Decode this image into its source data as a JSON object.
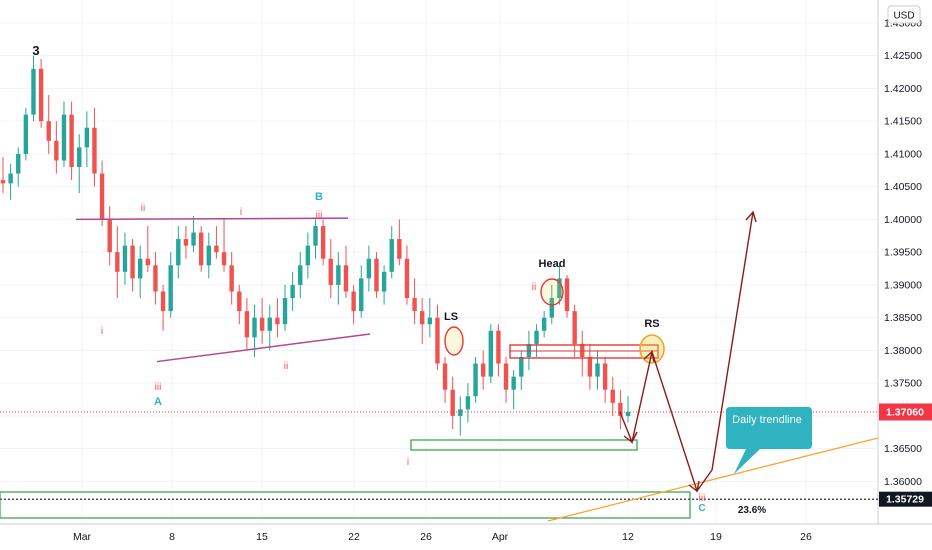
{
  "chart_data": {
    "type": "candlestick",
    "currency": "USD",
    "ylim": [
      1.3535,
      1.4335
    ],
    "y_ticks": [
      1.36,
      1.365,
      1.37,
      1.375,
      1.38,
      1.385,
      1.39,
      1.395,
      1.4,
      1.405,
      1.41,
      1.415,
      1.42,
      1.425,
      1.43
    ],
    "y_tick_labels": [
      "1.36000",
      "1.36500",
      "1.37000",
      "1.37500",
      "1.38000",
      "1.38500",
      "1.39000",
      "1.39500",
      "1.40000",
      "1.40500",
      "1.41000",
      "1.41500",
      "1.42000",
      "1.42500",
      "1.43000"
    ],
    "x_tick_labels": [
      "Mar",
      "8",
      "15",
      "22",
      "26",
      "Apr",
      "12",
      "19",
      "26"
    ],
    "current_price": {
      "value": 1.3706,
      "label": "1.37060",
      "color": "#f23645"
    },
    "level_price": {
      "value": 1.35729,
      "label": "1.35729",
      "color": "#131722"
    },
    "colors": {
      "up": "#26a69a",
      "down": "#ef5350",
      "trendline": "#f7a535",
      "pattern": "#b5478b",
      "box_green": "#2ea043",
      "box_red": "#e53935",
      "arrow": "#8b1a1a",
      "circle": "#f2a12e",
      "callout": "#2fb3c0"
    },
    "candles": [
      [
        1.406,
        1.4095,
        1.404,
        1.4055
      ],
      [
        1.4055,
        1.4085,
        1.403,
        1.407
      ],
      [
        1.407,
        1.411,
        1.405,
        1.41
      ],
      [
        1.41,
        1.417,
        1.409,
        1.416
      ],
      [
        1.416,
        1.425,
        1.415,
        1.423
      ],
      [
        1.423,
        1.4245,
        1.414,
        1.415
      ],
      [
        1.415,
        1.419,
        1.41,
        1.412
      ],
      [
        1.412,
        1.415,
        1.407,
        1.409
      ],
      [
        1.409,
        1.418,
        1.408,
        1.416
      ],
      [
        1.416,
        1.418,
        1.406,
        1.408
      ],
      [
        1.408,
        1.413,
        1.404,
        1.411
      ],
      [
        1.411,
        1.4165,
        1.408,
        1.414
      ],
      [
        1.414,
        1.417,
        1.405,
        1.407
      ],
      [
        1.407,
        1.409,
        1.399,
        1.4
      ],
      [
        1.4,
        1.402,
        1.393,
        1.395
      ],
      [
        1.395,
        1.399,
        1.388,
        1.392
      ],
      [
        1.392,
        1.398,
        1.39,
        1.396
      ],
      [
        1.396,
        1.397,
        1.389,
        1.391
      ],
      [
        1.391,
        1.396,
        1.388,
        1.394
      ],
      [
        1.394,
        1.399,
        1.392,
        1.393
      ],
      [
        1.393,
        1.395,
        1.387,
        1.389
      ],
      [
        1.389,
        1.39,
        1.383,
        1.386
      ],
      [
        1.386,
        1.395,
        1.385,
        1.393
      ],
      [
        1.393,
        1.399,
        1.391,
        1.397
      ],
      [
        1.397,
        1.399,
        1.394,
        1.396
      ],
      [
        1.396,
        1.4005,
        1.395,
        1.398
      ],
      [
        1.398,
        1.399,
        1.392,
        1.393
      ],
      [
        1.393,
        1.398,
        1.391,
        1.396
      ],
      [
        1.396,
        1.399,
        1.394,
        1.395
      ],
      [
        1.395,
        1.4,
        1.392,
        1.393
      ],
      [
        1.393,
        1.395,
        1.387,
        1.389
      ],
      [
        1.389,
        1.39,
        1.384,
        1.386
      ],
      [
        1.386,
        1.388,
        1.38,
        1.382
      ],
      [
        1.382,
        1.387,
        1.379,
        1.385
      ],
      [
        1.385,
        1.388,
        1.381,
        1.383
      ],
      [
        1.383,
        1.387,
        1.38,
        1.385
      ],
      [
        1.385,
        1.388,
        1.382,
        1.384
      ],
      [
        1.384,
        1.39,
        1.383,
        1.388
      ],
      [
        1.388,
        1.392,
        1.386,
        1.39
      ],
      [
        1.39,
        1.395,
        1.388,
        1.393
      ],
      [
        1.393,
        1.398,
        1.391,
        1.396
      ],
      [
        1.396,
        1.4,
        1.394,
        1.399
      ],
      [
        1.399,
        1.4,
        1.393,
        1.394
      ],
      [
        1.394,
        1.397,
        1.388,
        1.39
      ],
      [
        1.39,
        1.395,
        1.387,
        1.393
      ],
      [
        1.393,
        1.396,
        1.388,
        1.389
      ],
      [
        1.389,
        1.39,
        1.384,
        1.386
      ],
      [
        1.386,
        1.393,
        1.385,
        1.391
      ],
      [
        1.391,
        1.396,
        1.389,
        1.394
      ],
      [
        1.394,
        1.395,
        1.388,
        1.389
      ],
      [
        1.389,
        1.393,
        1.387,
        1.392
      ],
      [
        1.392,
        1.399,
        1.391,
        1.397
      ],
      [
        1.397,
        1.4,
        1.393,
        1.394
      ],
      [
        1.394,
        1.396,
        1.387,
        1.388
      ],
      [
        1.388,
        1.391,
        1.384,
        1.386
      ],
      [
        1.386,
        1.388,
        1.381,
        1.384
      ],
      [
        1.384,
        1.388,
        1.382,
        1.385
      ],
      [
        1.385,
        1.387,
        1.377,
        1.378
      ],
      [
        1.378,
        1.379,
        1.372,
        1.374
      ],
      [
        1.374,
        1.376,
        1.368,
        1.37
      ],
      [
        1.37,
        1.373,
        1.367,
        1.371
      ],
      [
        1.371,
        1.375,
        1.369,
        1.373
      ],
      [
        1.373,
        1.379,
        1.372,
        1.378
      ],
      [
        1.378,
        1.38,
        1.374,
        1.376
      ],
      [
        1.376,
        1.384,
        1.375,
        1.383
      ],
      [
        1.383,
        1.384,
        1.376,
        1.378
      ],
      [
        1.378,
        1.379,
        1.372,
        1.374
      ],
      [
        1.374,
        1.377,
        1.371,
        1.376
      ],
      [
        1.376,
        1.38,
        1.374,
        1.379
      ],
      [
        1.379,
        1.383,
        1.377,
        1.381
      ],
      [
        1.381,
        1.384,
        1.379,
        1.383
      ],
      [
        1.383,
        1.386,
        1.382,
        1.385
      ],
      [
        1.385,
        1.39,
        1.384,
        1.388
      ],
      [
        1.388,
        1.393,
        1.387,
        1.391
      ],
      [
        1.391,
        1.3915,
        1.385,
        1.386
      ],
      [
        1.386,
        1.387,
        1.379,
        1.381
      ],
      [
        1.381,
        1.383,
        1.376,
        1.379
      ],
      [
        1.379,
        1.381,
        1.374,
        1.376
      ],
      [
        1.376,
        1.38,
        1.374,
        1.378
      ],
      [
        1.378,
        1.379,
        1.372,
        1.374
      ],
      [
        1.374,
        1.376,
        1.37,
        1.372
      ],
      [
        1.372,
        1.374,
        1.368,
        1.37
      ],
      [
        1.37,
        1.373,
        1.369,
        1.3706
      ]
    ],
    "annotations": {
      "wave_major": "3",
      "wave_a": "A",
      "wave_b": "B",
      "wave_c": "C",
      "ii_1": "ii",
      "i_1": "i",
      "i_2": "i",
      "iii_1": "iii",
      "iii_2": "iii",
      "ii_2": "ii",
      "i_3": "i",
      "ii_3": "ii",
      "iii_3": "iii",
      "ls": "LS",
      "head": "Head",
      "rs": "RS",
      "fib": "23.6%",
      "callout": "Daily trendline"
    }
  }
}
